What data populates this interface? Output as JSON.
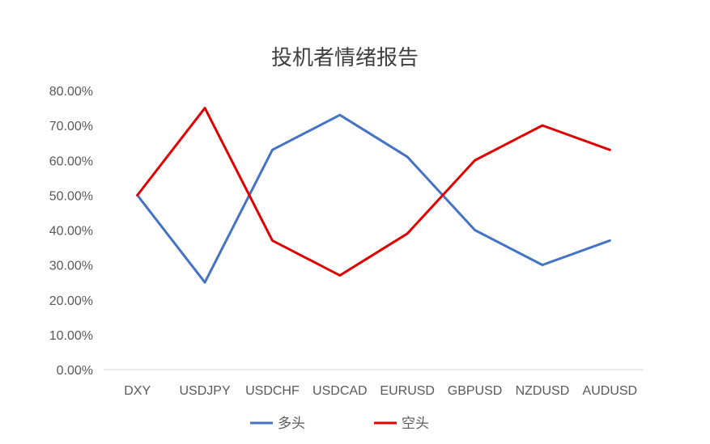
{
  "chart_data": {
    "type": "line",
    "title": "投机者情绪报告",
    "categories": [
      "DXY",
      "USDJPY",
      "USDCHF",
      "USDCAD",
      "EURUSD",
      "GBPUSD",
      "NZDUSD",
      "AUDUSD"
    ],
    "y_ticks": [
      "0.00%",
      "10.00%",
      "20.00%",
      "30.00%",
      "40.00%",
      "50.00%",
      "60.00%",
      "70.00%",
      "80.00%"
    ],
    "ylim": [
      0,
      80
    ],
    "y_unit": "%",
    "grid": false,
    "legend": "bottom",
    "series": [
      {
        "name": "多头",
        "color": "#4472C4",
        "values": [
          50,
          25,
          63,
          73,
          61,
          40,
          30,
          37
        ]
      },
      {
        "name": "空头",
        "color": "#E00000",
        "values": [
          50,
          75,
          37,
          27,
          39,
          60,
          70,
          63
        ]
      }
    ]
  }
}
